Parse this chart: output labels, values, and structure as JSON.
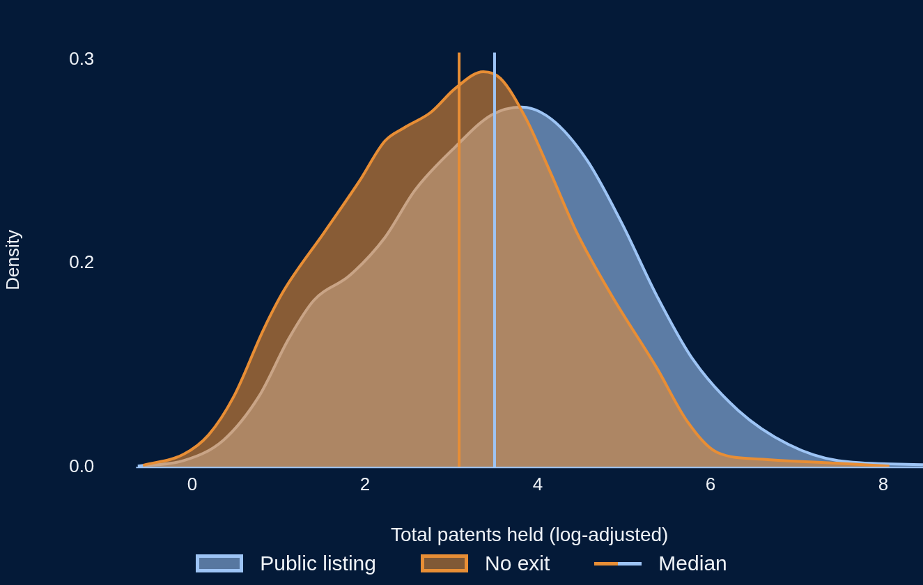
{
  "chart_data": {
    "type": "area",
    "xlabel": "Total patents held (log-adjusted)",
    "ylabel": "Density",
    "xlim": [
      -0.65,
      8.46
    ],
    "xticks": [
      0,
      2,
      4,
      6,
      8
    ],
    "ylim": [
      0,
      0.305
    ],
    "yticks": [
      {
        "value": 0,
        "label": "0.0"
      },
      {
        "value": 0.15,
        "label": "0.2"
      },
      {
        "value": 0.3,
        "label": "0.3"
      }
    ],
    "grid": false,
    "legend": "bottom",
    "series": [
      {
        "name": "Public listing",
        "color": "#9dc4f5",
        "x": [
          -0.63,
          -0.1,
          0.36,
          0.77,
          1.12,
          1.41,
          1.82,
          2.23,
          2.58,
          3.05,
          3.46,
          3.81,
          4.16,
          4.57,
          4.97,
          5.38,
          5.79,
          6.32,
          6.9,
          7.48,
          8.46
        ],
        "values": [
          0.001,
          0.005,
          0.02,
          0.052,
          0.095,
          0.123,
          0.141,
          0.169,
          0.204,
          0.236,
          0.259,
          0.265,
          0.256,
          0.226,
          0.18,
          0.126,
          0.08,
          0.042,
          0.017,
          0.005,
          0.002
        ]
      },
      {
        "name": "No exit",
        "color": "#e88e35",
        "x": [
          -0.57,
          -0.1,
          0.19,
          0.48,
          0.83,
          1.06,
          1.53,
          1.94,
          2.23,
          2.46,
          2.76,
          3.05,
          3.37,
          3.57,
          3.86,
          4.16,
          4.45,
          4.86,
          5.38,
          5.73,
          6.08,
          6.61,
          7.48,
          8.07
        ],
        "values": [
          0.0016,
          0.0097,
          0.024,
          0.052,
          0.102,
          0.13,
          0.173,
          0.211,
          0.24,
          0.25,
          0.261,
          0.279,
          0.291,
          0.286,
          0.257,
          0.215,
          0.173,
          0.126,
          0.073,
          0.034,
          0.011,
          0.006,
          0.003,
          0.001
        ]
      }
    ],
    "ref_lines": [
      {
        "axis": "x",
        "value": 3.09,
        "label": "Median",
        "color": "#e88e35"
      },
      {
        "axis": "x",
        "value": 3.5,
        "color": "#9dc4f5"
      }
    ]
  }
}
